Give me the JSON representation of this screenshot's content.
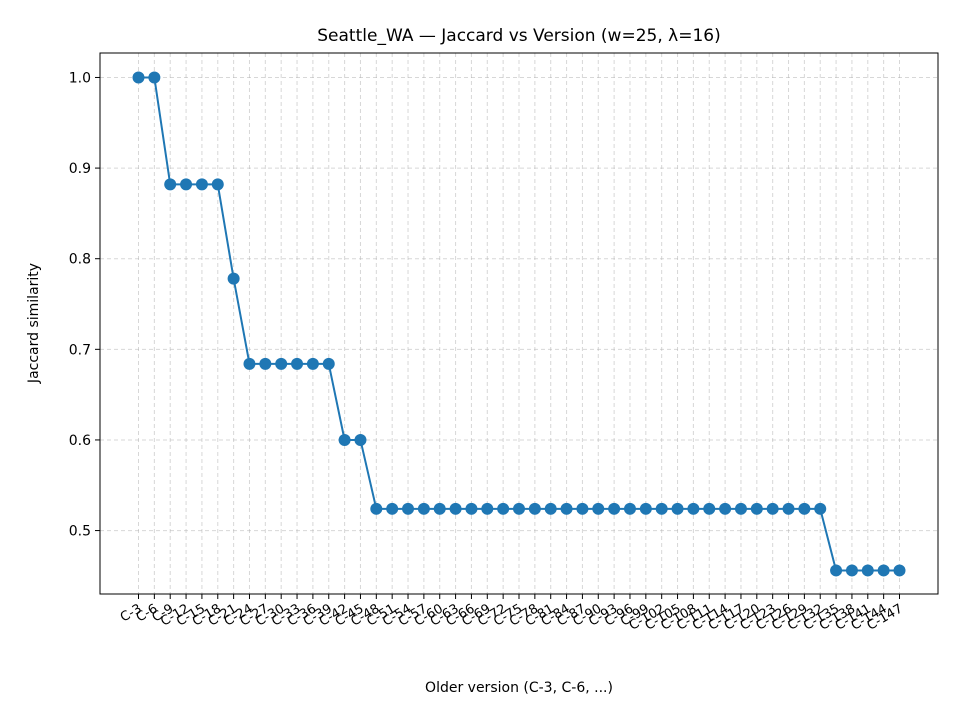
{
  "chart_data": {
    "type": "line",
    "title": "Seattle_WA — Jaccard vs Version (w=25, λ=16)",
    "xlabel": "Older version (C-3, C-6, ...)",
    "ylabel": "Jaccard similarity",
    "categories": [
      "C-3",
      "C-6",
      "C-9",
      "C-12",
      "C-15",
      "C-18",
      "C-21",
      "C-24",
      "C-27",
      "C-30",
      "C-33",
      "C-36",
      "C-39",
      "C-42",
      "C-45",
      "C-48",
      "C-51",
      "C-54",
      "C-57",
      "C-60",
      "C-63",
      "C-66",
      "C-69",
      "C-72",
      "C-75",
      "C-78",
      "C-81",
      "C-84",
      "C-87",
      "C-90",
      "C-93",
      "C-96",
      "C-99",
      "C-102",
      "C-105",
      "C-108",
      "C-111",
      "C-114",
      "C-117",
      "C-120",
      "C-123",
      "C-126",
      "C-129",
      "C-132",
      "C-135",
      "C-138",
      "C-141",
      "C-144",
      "C-147"
    ],
    "series": [
      {
        "values": [
          1.0,
          1.0,
          0.882,
          0.882,
          0.882,
          0.882,
          0.778,
          0.684,
          0.684,
          0.684,
          0.684,
          0.684,
          0.684,
          0.6,
          0.6,
          0.524,
          0.524,
          0.524,
          0.524,
          0.524,
          0.524,
          0.524,
          0.524,
          0.524,
          0.524,
          0.524,
          0.524,
          0.524,
          0.524,
          0.524,
          0.524,
          0.524,
          0.524,
          0.524,
          0.524,
          0.524,
          0.524,
          0.524,
          0.524,
          0.524,
          0.524,
          0.524,
          0.524,
          0.524,
          0.456,
          0.456,
          0.456,
          0.456,
          0.456
        ],
        "color": "#1f77b4"
      }
    ],
    "yticks": [
      "0.5",
      "0.6",
      "0.7",
      "0.8",
      "0.9",
      "1.0"
    ],
    "ylim": [
      0.43,
      1.027
    ],
    "grid": true,
    "grid_style": "dashed"
  }
}
